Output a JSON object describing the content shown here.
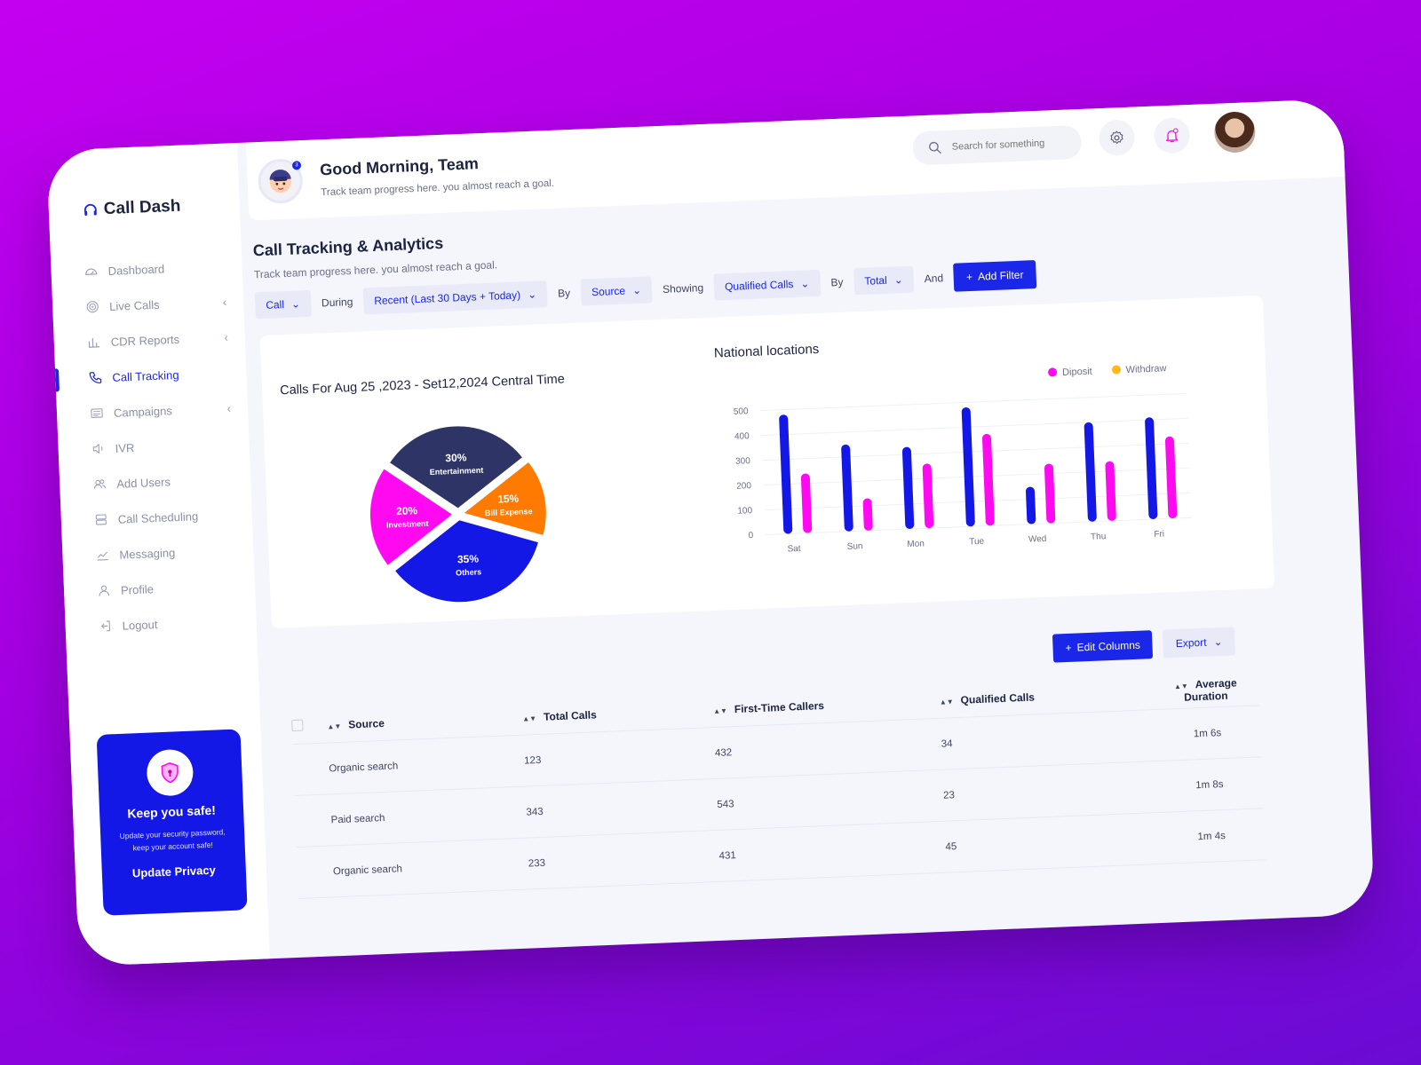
{
  "brand": {
    "name": "Call Dash"
  },
  "sidebar": {
    "items": [
      {
        "label": "Dashboard",
        "icon": "gauge-icon",
        "chevron": false,
        "active": false
      },
      {
        "label": "Live Calls",
        "icon": "signal-icon",
        "chevron": true,
        "active": false
      },
      {
        "label": "CDR Reports",
        "icon": "bar-chart-icon",
        "chevron": true,
        "active": false
      },
      {
        "label": "Call Tracking",
        "icon": "phone-icon",
        "chevron": false,
        "active": true
      },
      {
        "label": "Campaigns",
        "icon": "list-icon",
        "chevron": true,
        "active": false
      },
      {
        "label": "IVR",
        "icon": "speaker-icon",
        "chevron": false,
        "active": false
      },
      {
        "label": "Add Users",
        "icon": "users-icon",
        "chevron": false,
        "active": false
      },
      {
        "label": "Call Scheduling",
        "icon": "server-icon",
        "chevron": false,
        "active": false
      },
      {
        "label": "Messaging",
        "icon": "line-chart-icon",
        "chevron": false,
        "active": false
      },
      {
        "label": "Profile",
        "icon": "user-icon",
        "chevron": false,
        "active": false
      },
      {
        "label": "Logout",
        "icon": "logout-icon",
        "chevron": false,
        "active": false
      }
    ],
    "promo": {
      "title": "Keep you safe!",
      "text": "Update your security password, keep your account safe!",
      "action": "Update Privacy"
    }
  },
  "header": {
    "greeting": "Good Morning, Team",
    "subtitle": "Track team progress here. you almost reach a goal.",
    "notification_count": "3",
    "search_placeholder": "Search for something"
  },
  "main": {
    "title": "Call Tracking & Analytics",
    "subtitle": "Track team progress here. you almost reach a goal.",
    "filters": {
      "call": "Call",
      "during_label": "During",
      "range": "Recent (Last 30 Days + Today)",
      "by_label": "By",
      "source": "Source",
      "showing_label": "Showing",
      "metric": "Qualified Calls",
      "by_label2": "By",
      "total": "Total",
      "and_label": "And",
      "add_filter": "Add Filter"
    },
    "pie_title": "Calls For Aug 25 ,2023 - Set12,2024 Central Time",
    "bar_title": "National locations",
    "legend": {
      "a": "Diposit",
      "b": "Withdraw"
    },
    "edit_columns": "Edit Columns",
    "export": "Export",
    "table": {
      "headers": [
        "Source",
        "Total Calls",
        "First-Time Callers",
        "Qualified Calls",
        "Average Duration"
      ],
      "rows": [
        [
          "Organic search",
          "123",
          "432",
          "34",
          "1m 6s"
        ],
        [
          "Paid search",
          "343",
          "543",
          "23",
          "1m 8s"
        ],
        [
          "Organic search",
          "233",
          "431",
          "45",
          "1m 4s"
        ]
      ]
    }
  },
  "colors": {
    "accent": "#1a27e8",
    "magenta": "#ff0af0",
    "orange": "#ff7a00",
    "navy": "#2e3566",
    "withdraw": "#ffb81c"
  },
  "chart_data": [
    {
      "type": "pie",
      "title": "Calls For Aug 25 ,2023 - Set12,2024 Central Time",
      "slices": [
        {
          "label": "Entertainment",
          "value": 30,
          "pct": "30%",
          "color": "#2e3566"
        },
        {
          "label": "Bill Expense",
          "value": 15,
          "pct": "15%",
          "color": "#ff7a00"
        },
        {
          "label": "Others",
          "value": 35,
          "pct": "35%",
          "color": "#1418e6"
        },
        {
          "label": "Investment",
          "value": 20,
          "pct": "20%",
          "color": "#ff0af0"
        }
      ]
    },
    {
      "type": "bar",
      "title": "National locations",
      "categories": [
        "Sat",
        "Sun",
        "Mon",
        "Tue",
        "Wed",
        "Thu",
        "Fri"
      ],
      "series": [
        {
          "name": "Diposit",
          "color": "#1418e6",
          "values": [
            480,
            350,
            330,
            480,
            150,
            400,
            410
          ]
        },
        {
          "name": "Withdraw",
          "color": "#ff0af0",
          "values": [
            240,
            130,
            260,
            370,
            240,
            240,
            330
          ]
        }
      ],
      "ylim": [
        0,
        500
      ],
      "yticks": [
        0,
        100,
        200,
        300,
        400,
        500
      ],
      "grid": true,
      "legend": "top-right"
    }
  ]
}
